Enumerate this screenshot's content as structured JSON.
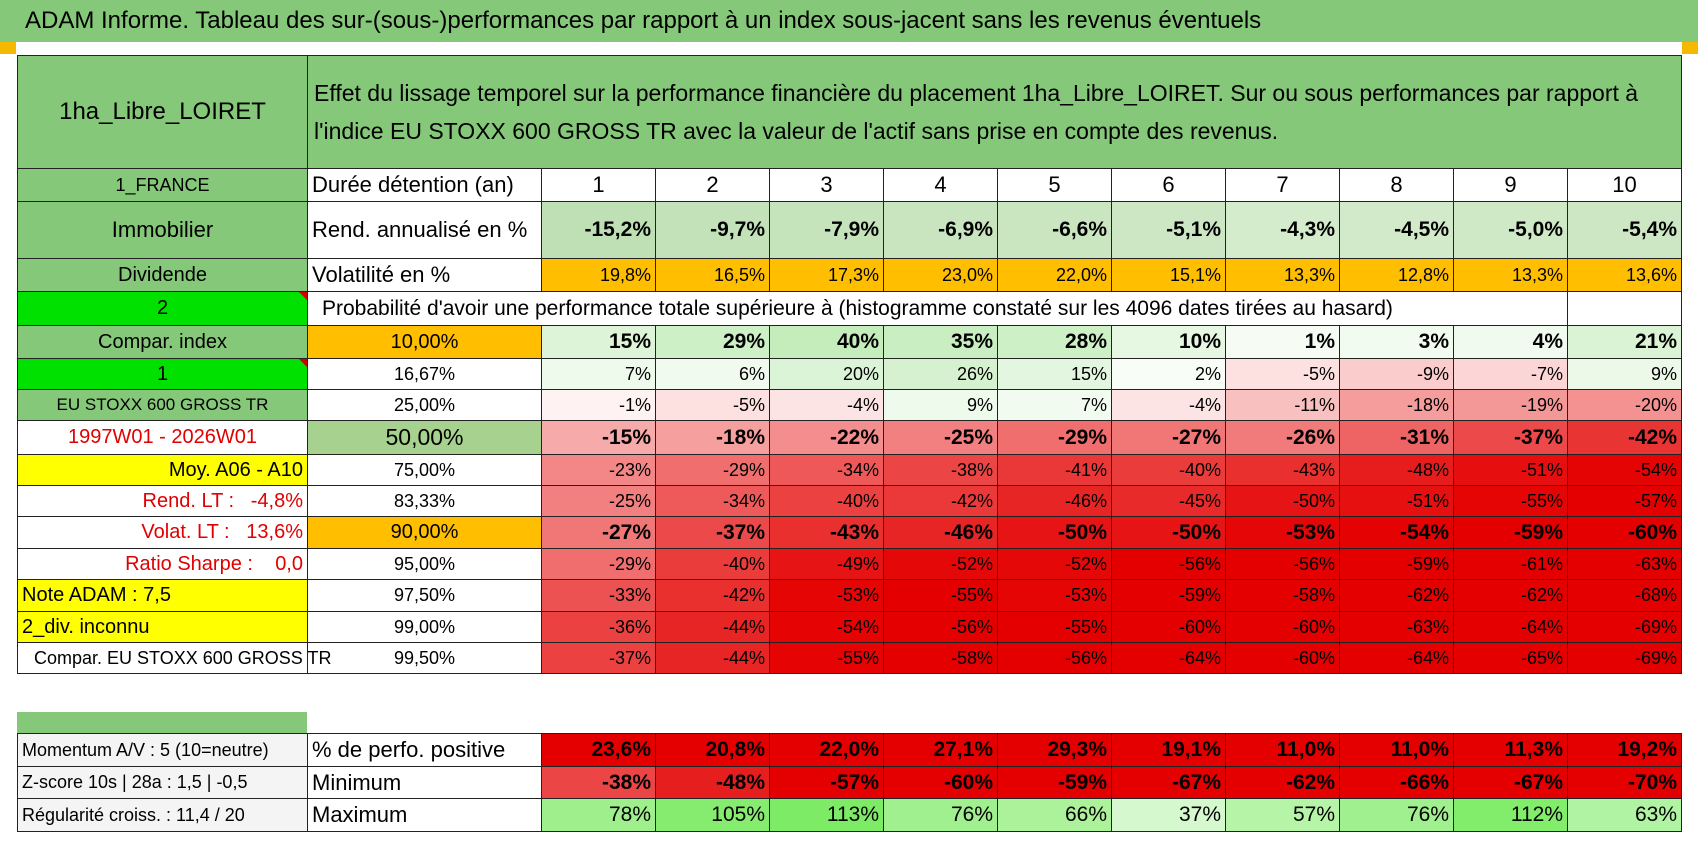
{
  "title": "ADAM Informe. Tableau des sur-(sous-)performances par rapport à un index sous-jacent sans les revenus éventuels",
  "header": {
    "fund_name": "1ha_Libre_LOIRET",
    "description": "Effet du lissage temporel sur la performance financière du placement 1ha_Libre_LOIRET. Sur ou sous performances par rapport à l'indice EU STOXX 600 GROSS TR avec la valeur de l'actif sans prise en compte des revenus."
  },
  "left_labels": {
    "country": "1_FRANCE",
    "asset_class": "Immobilier",
    "income_type": "Dividende",
    "index_count": "2",
    "compar_index": "Compar. index",
    "index_number": "1",
    "index_name": "EU STOXX 600 GROSS TR",
    "period": "1997W01 - 2026W01",
    "moy": "Moy. A06 - A10",
    "rend_lt_label": "Rend. LT :",
    "rend_lt_value": "-4,8%",
    "volat_lt_label": "Volat. LT :",
    "volat_lt_value": "13,6%",
    "sharpe_label": "Ratio Sharpe :",
    "sharpe_value": "0,0",
    "note_adam": "Note ADAM : 7,5",
    "div_inconnu": "2_div. inconnu",
    "compar_full": "Compar. EU STOXX 600 GROSS TR"
  },
  "duration": {
    "label": "Durée détention (an)",
    "years": [
      "1",
      "2",
      "3",
      "4",
      "5",
      "6",
      "7",
      "8",
      "9",
      "10"
    ]
  },
  "rend": {
    "label": "Rend. annualisé en %",
    "values": [
      "-15,2%",
      "-9,7%",
      "-7,9%",
      "-6,9%",
      "-6,6%",
      "-5,1%",
      "-4,3%",
      "-4,5%",
      "-5,0%",
      "-5,4%"
    ]
  },
  "volat": {
    "label": "Volatilité en %",
    "values": [
      "19,8%",
      "16,5%",
      "17,3%",
      "23,0%",
      "22,0%",
      "15,1%",
      "13,3%",
      "12,8%",
      "13,3%",
      "13,6%"
    ]
  },
  "prob_header": "Probabilité d'avoir une performance totale supérieure à (histogramme constaté sur les 4096 dates tirées au hasard)",
  "prob_rows": [
    {
      "pct": "10,00%",
      "values": [
        "15%",
        "29%",
        "40%",
        "35%",
        "28%",
        "10%",
        "1%",
        "3%",
        "4%",
        "21%"
      ]
    },
    {
      "pct": "16,67%",
      "values": [
        "7%",
        "6%",
        "20%",
        "26%",
        "15%",
        "2%",
        "-5%",
        "-9%",
        "-7%",
        "9%"
      ]
    },
    {
      "pct": "25,00%",
      "values": [
        "-1%",
        "-5%",
        "-4%",
        "9%",
        "7%",
        "-4%",
        "-11%",
        "-18%",
        "-19%",
        "-20%"
      ]
    },
    {
      "pct": "50,00%",
      "values": [
        "-15%",
        "-18%",
        "-22%",
        "-25%",
        "-29%",
        "-27%",
        "-26%",
        "-31%",
        "-37%",
        "-42%"
      ]
    },
    {
      "pct": "75,00%",
      "values": [
        "-23%",
        "-29%",
        "-34%",
        "-38%",
        "-41%",
        "-40%",
        "-43%",
        "-48%",
        "-51%",
        "-54%"
      ]
    },
    {
      "pct": "83,33%",
      "values": [
        "-25%",
        "-34%",
        "-40%",
        "-42%",
        "-46%",
        "-45%",
        "-50%",
        "-51%",
        "-55%",
        "-57%"
      ]
    },
    {
      "pct": "90,00%",
      "values": [
        "-27%",
        "-37%",
        "-43%",
        "-46%",
        "-50%",
        "-50%",
        "-53%",
        "-54%",
        "-59%",
        "-60%"
      ]
    },
    {
      "pct": "95,00%",
      "values": [
        "-29%",
        "-40%",
        "-49%",
        "-52%",
        "-52%",
        "-56%",
        "-56%",
        "-59%",
        "-61%",
        "-63%"
      ]
    },
    {
      "pct": "97,50%",
      "values": [
        "-33%",
        "-42%",
        "-53%",
        "-55%",
        "-53%",
        "-59%",
        "-58%",
        "-62%",
        "-62%",
        "-68%"
      ]
    },
    {
      "pct": "99,00%",
      "values": [
        "-36%",
        "-44%",
        "-54%",
        "-56%",
        "-55%",
        "-60%",
        "-60%",
        "-63%",
        "-64%",
        "-69%"
      ]
    },
    {
      "pct": "99,50%",
      "values": [
        "-37%",
        "-44%",
        "-55%",
        "-58%",
        "-56%",
        "-64%",
        "-60%",
        "-64%",
        "-65%",
        "-69%"
      ]
    }
  ],
  "bottom": {
    "momentum": "Momentum A/V : 5 (10=neutre)",
    "zscore": "Z-score 10s | 28a : 1,5 | -0,5",
    "regularite": "Régularité croiss. : 11,4 / 20",
    "pos_label": "% de perfo. positive",
    "pos_values": [
      "23,6%",
      "20,8%",
      "22,0%",
      "27,1%",
      "29,3%",
      "19,1%",
      "11,0%",
      "11,0%",
      "11,3%",
      "19,2%"
    ],
    "min_label": "Minimum",
    "min_values": [
      "-38%",
      "-48%",
      "-57%",
      "-60%",
      "-59%",
      "-67%",
      "-62%",
      "-66%",
      "-67%",
      "-70%"
    ],
    "max_label": "Maximum",
    "max_values": [
      "78%",
      "105%",
      "113%",
      "76%",
      "66%",
      "37%",
      "57%",
      "76%",
      "112%",
      "63%"
    ]
  }
}
